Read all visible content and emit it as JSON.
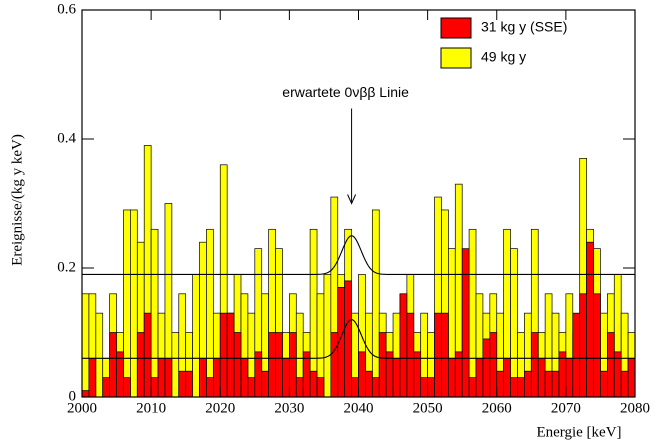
{
  "chart_data": {
    "type": "histogram",
    "xlabel": "Energie [keV]",
    "ylabel": "Ereignisse/(kg y keV)",
    "xlim": [
      2000,
      2080
    ],
    "ylim": [
      0,
      0.6
    ],
    "xticks": [
      2000,
      2010,
      2020,
      2030,
      2040,
      2050,
      2060,
      2070,
      2080
    ],
    "yticks": [
      0,
      0.2,
      0.4,
      0.6
    ],
    "bins": [
      2000,
      2001,
      2002,
      2003,
      2004,
      2005,
      2006,
      2007,
      2008,
      2009,
      2010,
      2011,
      2012,
      2013,
      2014,
      2015,
      2016,
      2017,
      2018,
      2019,
      2020,
      2021,
      2022,
      2023,
      2024,
      2025,
      2026,
      2027,
      2028,
      2029,
      2030,
      2031,
      2032,
      2033,
      2034,
      2035,
      2036,
      2037,
      2038,
      2039,
      2040,
      2041,
      2042,
      2043,
      2044,
      2045,
      2046,
      2047,
      2048,
      2049,
      2050,
      2051,
      2052,
      2053,
      2054,
      2055,
      2056,
      2057,
      2058,
      2059,
      2060,
      2061,
      2062,
      2063,
      2064,
      2065,
      2066,
      2067,
      2068,
      2069,
      2070,
      2071,
      2072,
      2073,
      2074,
      2075,
      2076,
      2077,
      2078,
      2079,
      2080
    ],
    "series": [
      {
        "name": "49 kg y",
        "color": "#ffff00",
        "values": [
          0.16,
          0.16,
          0.13,
          0.06,
          0.16,
          0.1,
          0.29,
          0.29,
          0.24,
          0.39,
          0.26,
          0.13,
          0.3,
          0.1,
          0.16,
          0.1,
          0.19,
          0.24,
          0.26,
          0.13,
          0.36,
          0.13,
          0.19,
          0.16,
          0.13,
          0.23,
          0.16,
          0.26,
          0.23,
          0.1,
          0.16,
          0.13,
          0.1,
          0.26,
          0.16,
          0.19,
          0.31,
          0.19,
          0.26,
          0.13,
          0.19,
          0.13,
          0.29,
          0.13,
          0.1,
          0.13,
          0.16,
          0.19,
          0.1,
          0.13,
          0.1,
          0.31,
          0.29,
          0.23,
          0.33,
          0.19,
          0.26,
          0.16,
          0.13,
          0.16,
          0.13,
          0.26,
          0.23,
          0.1,
          0.13,
          0.26,
          0.1,
          0.16,
          0.13,
          0.1,
          0.16,
          0.1,
          0.37,
          0.26,
          0.23,
          0.13,
          0.16,
          0.19,
          0.13,
          0.1
        ]
      },
      {
        "name": "31 kg y (SSE)",
        "color": "#ff0000",
        "values": [
          0.01,
          0.06,
          0,
          0.03,
          0.1,
          0.07,
          0.03,
          0,
          0.1,
          0.13,
          0.03,
          0.06,
          0.06,
          0,
          0.04,
          0.04,
          0,
          0.06,
          0.03,
          0.06,
          0.13,
          0.13,
          0.1,
          0.06,
          0.03,
          0.07,
          0.04,
          0.1,
          0.1,
          0.06,
          0.1,
          0.03,
          0.07,
          0.04,
          0.03,
          0,
          0.1,
          0.17,
          0.18,
          0.03,
          0.07,
          0.04,
          0.03,
          0.1,
          0.07,
          0.06,
          0.16,
          0.13,
          0.07,
          0.03,
          0.03,
          0.13,
          0.13,
          0.06,
          0.07,
          0.23,
          0.03,
          0.06,
          0.09,
          0.1,
          0.04,
          0.06,
          0.03,
          0.03,
          0.04,
          0.1,
          0.06,
          0.04,
          0.04,
          0.07,
          0.06,
          0.13,
          0.16,
          0.24,
          0.16,
          0.04,
          0.1,
          0.07,
          0.04,
          0.06
        ]
      }
    ],
    "fit_curves": [
      {
        "background": 0.19,
        "amplitude": 0.06,
        "mean": 2039,
        "sigma": 1.4
      },
      {
        "background": 0.06,
        "amplitude": 0.06,
        "mean": 2039,
        "sigma": 1.4
      }
    ],
    "annotation": {
      "text": "erwartete 0νββ Linie",
      "x": 2039,
      "y": 0.3
    }
  }
}
